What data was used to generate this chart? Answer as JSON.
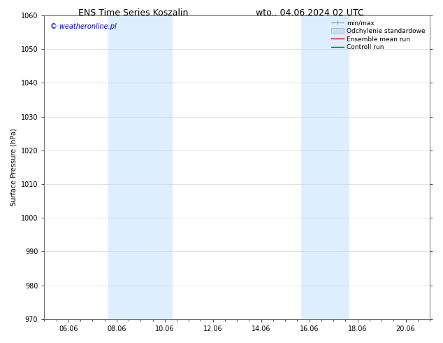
{
  "title_left": "ENS Time Series Koszalin",
  "title_right": "wto.. 04.06.2024 02 UTC",
  "ylabel": "Surface Pressure (hPa)",
  "watermark": "© weatheronline.pl",
  "watermark_color": "#0000cc",
  "ylim": [
    970,
    1060
  ],
  "yticks": [
    970,
    980,
    990,
    1000,
    1010,
    1020,
    1030,
    1040,
    1050,
    1060
  ],
  "xtick_labels": [
    "06.06",
    "08.06",
    "10.06",
    "12.06",
    "14.06",
    "16.06",
    "18.06",
    "20.06"
  ],
  "xtick_positions": [
    1.0,
    3.0,
    5.0,
    7.0,
    9.0,
    11.0,
    13.0,
    15.0
  ],
  "xmin": 0.0,
  "xmax": 16.0,
  "shade_bands": [
    {
      "xmin": 2.667,
      "xmax": 5.333
    },
    {
      "xmin": 10.667,
      "xmax": 12.667
    }
  ],
  "shade_color": "#ddeeff",
  "background_color": "#ffffff",
  "grid_color": "#cccccc",
  "legend_items": [
    {
      "label": "min/max",
      "color": "#aaaaaa",
      "lw": 1.0
    },
    {
      "label": "Odchylenie standardowe",
      "color": "#ccddf0",
      "lw": 5
    },
    {
      "label": "Ensemble mean run",
      "color": "#dd0000",
      "lw": 1.0
    },
    {
      "label": "Controll run",
      "color": "#006600",
      "lw": 1.0
    }
  ],
  "title_fontsize": 9,
  "axis_fontsize": 7,
  "tick_fontsize": 7,
  "legend_fontsize": 6.5,
  "watermark_fontsize": 7
}
